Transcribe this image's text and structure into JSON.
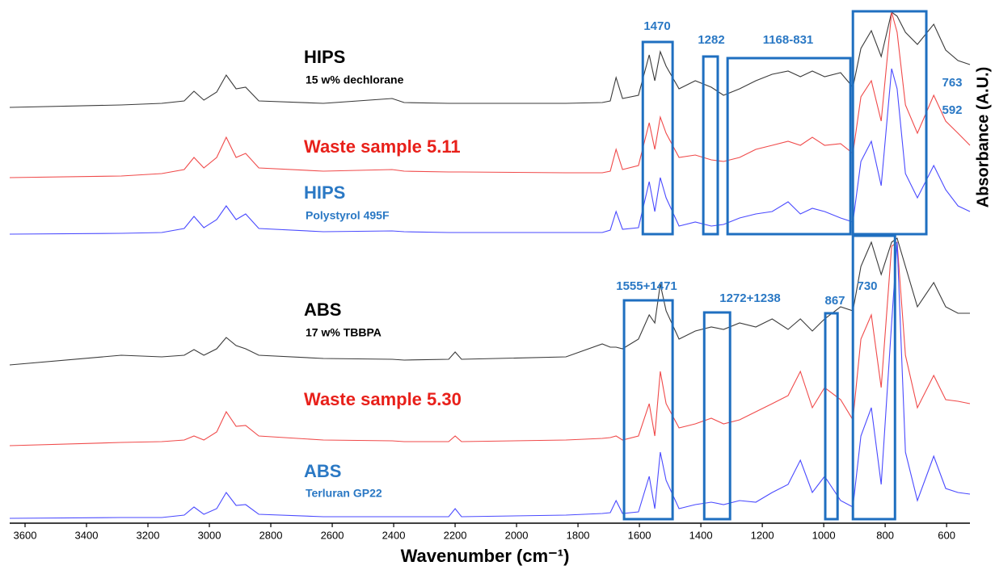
{
  "chart_data": {
    "type": "line",
    "x_label": "Wavenumber (cm⁻¹)",
    "y_label": "Absorbance (A.U.)",
    "xlim": [
      3650,
      524
    ],
    "ylim": [
      0,
      640
    ],
    "xticks": [
      3600,
      3400,
      3200,
      3000,
      2800,
      2600,
      2400,
      2200,
      2000,
      1800,
      1600,
      1400,
      1200,
      1000,
      800,
      600
    ],
    "x": [
      3650,
      3287,
      3155,
      3082,
      3050,
      3018,
      2976,
      2945,
      2913,
      2882,
      2839,
      2629,
      2405,
      2366,
      2221,
      2200,
      2179,
      1839,
      1721,
      1695,
      1676,
      1655,
      1603,
      1568,
      1550,
      1532,
      1513,
      1471,
      1418,
      1366,
      1326,
      1274,
      1221,
      1168,
      1116,
      1076,
      1037,
      997,
      945,
      905,
      879,
      845,
      813,
      779,
      761,
      734,
      695,
      642,
      603,
      563,
      524
    ],
    "series": [
      {
        "name": "HIPS",
        "note": "15 w% dechlorane",
        "color": "#3a3a3a",
        "label_color": "#000000",
        "values": [
          515,
          518,
          520,
          523,
          535,
          524,
          534,
          555,
          538,
          540,
          523,
          520,
          526,
          521,
          520,
          520,
          520,
          520,
          521,
          523,
          552,
          526,
          530,
          580,
          548,
          584,
          566,
          538,
          548,
          540,
          530,
          538,
          548,
          556,
          560,
          553,
          560,
          553,
          558,
          540,
          588,
          610,
          578,
          633,
          628,
          608,
          593,
          618,
          586,
          573,
          568
        ]
      },
      {
        "name": "Waste sample 5.11",
        "color": "#f04a4a",
        "label_color": "#e8201a",
        "values": [
          428,
          430,
          433,
          438,
          453,
          440,
          453,
          478,
          453,
          458,
          440,
          436,
          438,
          436,
          435,
          435,
          435,
          434,
          434,
          436,
          463,
          438,
          443,
          496,
          463,
          503,
          483,
          453,
          456,
          450,
          448,
          453,
          463,
          468,
          473,
          468,
          478,
          468,
          470,
          458,
          528,
          548,
          498,
          633,
          608,
          518,
          483,
          530,
          498,
          483,
          468
        ]
      },
      {
        "name": "HIPS",
        "note": "Polystyrol 495F",
        "color": "#4a4aff",
        "label_color": "#2a78c4",
        "values": [
          358,
          359,
          360,
          365,
          380,
          366,
          376,
          393,
          376,
          383,
          365,
          361,
          362,
          361,
          360,
          360,
          360,
          360,
          360,
          363,
          386,
          364,
          366,
          423,
          386,
          428,
          403,
          368,
          373,
          368,
          370,
          378,
          383,
          386,
          398,
          383,
          390,
          386,
          378,
          373,
          448,
          473,
          418,
          563,
          538,
          433,
          403,
          443,
          413,
          393,
          386
        ]
      },
      {
        "name": "ABS",
        "note": "17 w% TBBPA",
        "color": "#3a3a3a",
        "label_color": "#000000",
        "values": [
          196,
          208,
          206,
          208,
          215,
          208,
          216,
          230,
          220,
          216,
          208,
          204,
          203,
          202,
          203,
          212,
          203,
          206,
          222,
          218,
          218,
          216,
          228,
          258,
          248,
          296,
          263,
          228,
          238,
          243,
          240,
          248,
          243,
          253,
          240,
          253,
          238,
          253,
          268,
          263,
          318,
          348,
          308,
          348,
          353,
          318,
          268,
          298,
          268,
          260,
          260
        ]
      },
      {
        "name": "Waste sample 5.30",
        "color": "#f04a4a",
        "label_color": "#e8201a",
        "values": [
          96,
          100,
          101,
          103,
          108,
          103,
          113,
          138,
          120,
          121,
          108,
          103,
          102,
          101,
          101,
          108,
          101,
          103,
          105,
          106,
          108,
          103,
          108,
          148,
          108,
          188,
          148,
          118,
          123,
          130,
          123,
          128,
          138,
          148,
          158,
          188,
          143,
          168,
          153,
          128,
          228,
          258,
          168,
          343,
          348,
          208,
          143,
          183,
          153,
          151,
          148
        ]
      },
      {
        "name": "ABS",
        "note": "Terluran GP22",
        "color": "#4a4aff",
        "label_color": "#2a78c4",
        "values": [
          6,
          7,
          7,
          10,
          20,
          11,
          18,
          38,
          22,
          23,
          11,
          8,
          8,
          8,
          8,
          18,
          8,
          10,
          12,
          13,
          28,
          12,
          14,
          58,
          18,
          88,
          53,
          18,
          23,
          26,
          23,
          28,
          26,
          38,
          48,
          78,
          38,
          58,
          28,
          20,
          108,
          143,
          48,
          248,
          348,
          88,
          28,
          83,
          43,
          38,
          36
        ]
      }
    ],
    "annotations": [
      {
        "labels": [
          "1470"
        ],
        "xlim": [
          1589,
          1492
        ],
        "ylim": [
          358,
          596
        ]
      },
      {
        "labels": [
          "1282"
        ],
        "xlim": [
          1392,
          1345
        ],
        "ylim": [
          358,
          578
        ]
      },
      {
        "labels": [
          "1168-831"
        ],
        "xlim": [
          1313,
          913
        ],
        "ylim": [
          358,
          576
        ]
      },
      {
        "labels": [
          "763",
          "592"
        ],
        "xlim": [
          905,
          666
        ],
        "ylim": [
          358,
          634
        ]
      },
      {
        "labels": [
          "1555+1471"
        ],
        "xlim": [
          1650,
          1492
        ],
        "ylim": [
          5,
          276
        ]
      },
      {
        "labels": [
          "1272+1238"
        ],
        "xlim": [
          1389,
          1305
        ],
        "ylim": [
          5,
          261
        ]
      },
      {
        "labels": [
          "867"
        ],
        "xlim": [
          995,
          955
        ],
        "ylim": [
          5,
          260
        ]
      },
      {
        "labels": [
          "730"
        ],
        "xlim": [
          905,
          768
        ],
        "ylim": [
          5,
          356
        ]
      }
    ],
    "annotation_color": "#1f6fc0"
  }
}
